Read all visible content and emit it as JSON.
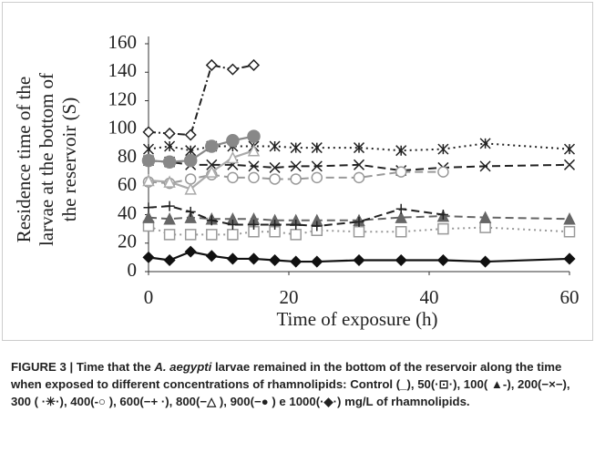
{
  "chart_data": {
    "type": "line",
    "ylabel": [
      "Residence time of the",
      "larvae at the bottom of",
      "the reservoir (S)"
    ],
    "xlabel": "Time of exposure (h)",
    "x": [
      0,
      3,
      6,
      9,
      12,
      15,
      18,
      21,
      24,
      30,
      36,
      42,
      48,
      60
    ],
    "xlim": [
      0,
      60
    ],
    "xticks": [
      0,
      20,
      40,
      60
    ],
    "ylim": [
      0,
      160
    ],
    "yticks": [
      0,
      20,
      40,
      60,
      80,
      100,
      120,
      140,
      160
    ],
    "series": [
      {
        "name": "Control",
        "color": "#111",
        "dash": "solid",
        "marker": "diamond-filled",
        "values": [
          10,
          8,
          14,
          11,
          9,
          9,
          8,
          7,
          7,
          8,
          8,
          8,
          7,
          9
        ]
      },
      {
        "name": "50",
        "color": "#999",
        "dash": "dotted",
        "marker": "square",
        "values": [
          32,
          26,
          26,
          26,
          26,
          28,
          28,
          26,
          29,
          28,
          28,
          30,
          31,
          28
        ]
      },
      {
        "name": "100",
        "color": "#666",
        "dash": "dashed",
        "marker": "triangle-filled",
        "values": [
          38,
          37,
          38,
          37,
          37,
          37,
          36,
          36,
          36,
          36,
          38,
          39,
          38,
          37
        ]
      },
      {
        "name": "200",
        "color": "#222",
        "dash": "dashed",
        "marker": "x",
        "values": [
          78,
          77,
          75,
          75,
          75,
          74,
          73,
          74,
          74,
          75,
          71,
          73,
          74,
          75
        ]
      },
      {
        "name": "300",
        "color": "#222",
        "dash": "dotted",
        "marker": "star",
        "values": [
          86,
          88,
          85,
          88,
          88,
          88,
          88,
          87,
          87,
          87,
          85,
          86,
          90,
          86
        ]
      },
      {
        "name": "400",
        "color": "#999",
        "dash": "dashed",
        "marker": "circle",
        "values": [
          63,
          62,
          65,
          68,
          66,
          66,
          65,
          65,
          66,
          66,
          70,
          70,
          null,
          null
        ]
      },
      {
        "name": "600",
        "color": "#222",
        "dash": "dashed",
        "marker": "plus",
        "values": [
          45,
          46,
          42,
          36,
          33,
          33,
          33,
          33,
          32,
          35,
          44,
          40,
          null,
          null
        ]
      },
      {
        "name": "800",
        "color": "#aaa",
        "dash": "solid",
        "marker": "triangle",
        "values": [
          64,
          63,
          58,
          70,
          80,
          85,
          null,
          null,
          null,
          null,
          null,
          null,
          null,
          null
        ]
      },
      {
        "name": "900",
        "color": "#888",
        "dash": "solid",
        "marker": "circle-filled",
        "values": [
          78,
          77,
          78,
          88,
          92,
          95,
          null,
          null,
          null,
          null,
          null,
          null,
          null,
          null
        ]
      },
      {
        "name": "1000",
        "color": "#222",
        "dash": "dashdot",
        "marker": "diamond",
        "values": [
          98,
          97,
          96,
          145,
          142,
          145,
          null,
          null,
          null,
          null,
          null,
          null,
          null,
          null
        ]
      }
    ],
    "caption": {
      "prefix": "FIGURE 3 | Time that the ",
      "italic": "A. aegypti",
      "suffix": " larvae remained in the bottom of the reservoir along the time when exposed to different concentrations of rhamnolipids: Control (_), 50(·⊡·), 100( ▲-), 200(−×−), 300 ( ·✳·), 400(-○ ), 600(−+ ·), 800(−△ ), 900(−● ) e 1000(·◆·) mg/L of rhamnolipids."
    }
  }
}
